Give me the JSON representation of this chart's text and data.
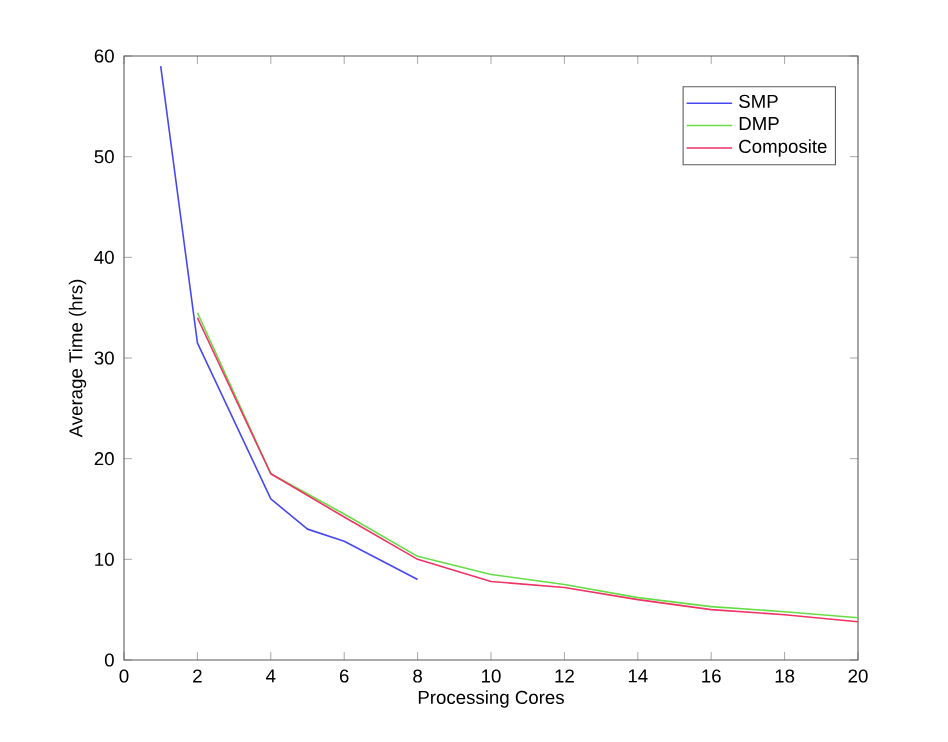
{
  "chart_data": {
    "type": "line",
    "xlabel": "Processing Cores",
    "ylabel": "Average Time (hrs)",
    "xlim": [
      0,
      20
    ],
    "ylim": [
      0,
      60
    ],
    "xticks": [
      0,
      2,
      4,
      6,
      8,
      10,
      12,
      14,
      16,
      18,
      20
    ],
    "yticks": [
      0,
      10,
      20,
      30,
      40,
      50,
      60
    ],
    "legend": "top right",
    "grid": false,
    "marker": "none",
    "line_style": "solid",
    "series": [
      {
        "name": "SMP",
        "color": "#4848f0",
        "x": [
          1,
          2,
          4,
          5,
          6,
          8
        ],
        "values": [
          59,
          31.5,
          16,
          13,
          11.8,
          8
        ]
      },
      {
        "name": "DMP",
        "color": "#66dd44",
        "x": [
          2,
          4,
          6,
          8,
          10,
          12,
          14,
          16,
          18,
          20
        ],
        "values": [
          34.5,
          18.5,
          14.5,
          10.3,
          8.5,
          7.5,
          6.2,
          5.3,
          4.8,
          4.2
        ]
      },
      {
        "name": "Composite",
        "color": "#ee3366",
        "x": [
          2,
          4,
          6,
          8,
          10,
          12,
          14,
          16,
          18,
          20
        ],
        "values": [
          34,
          18.5,
          14.2,
          10,
          7.8,
          7.2,
          6,
          5,
          4.5,
          3.8
        ]
      }
    ]
  }
}
